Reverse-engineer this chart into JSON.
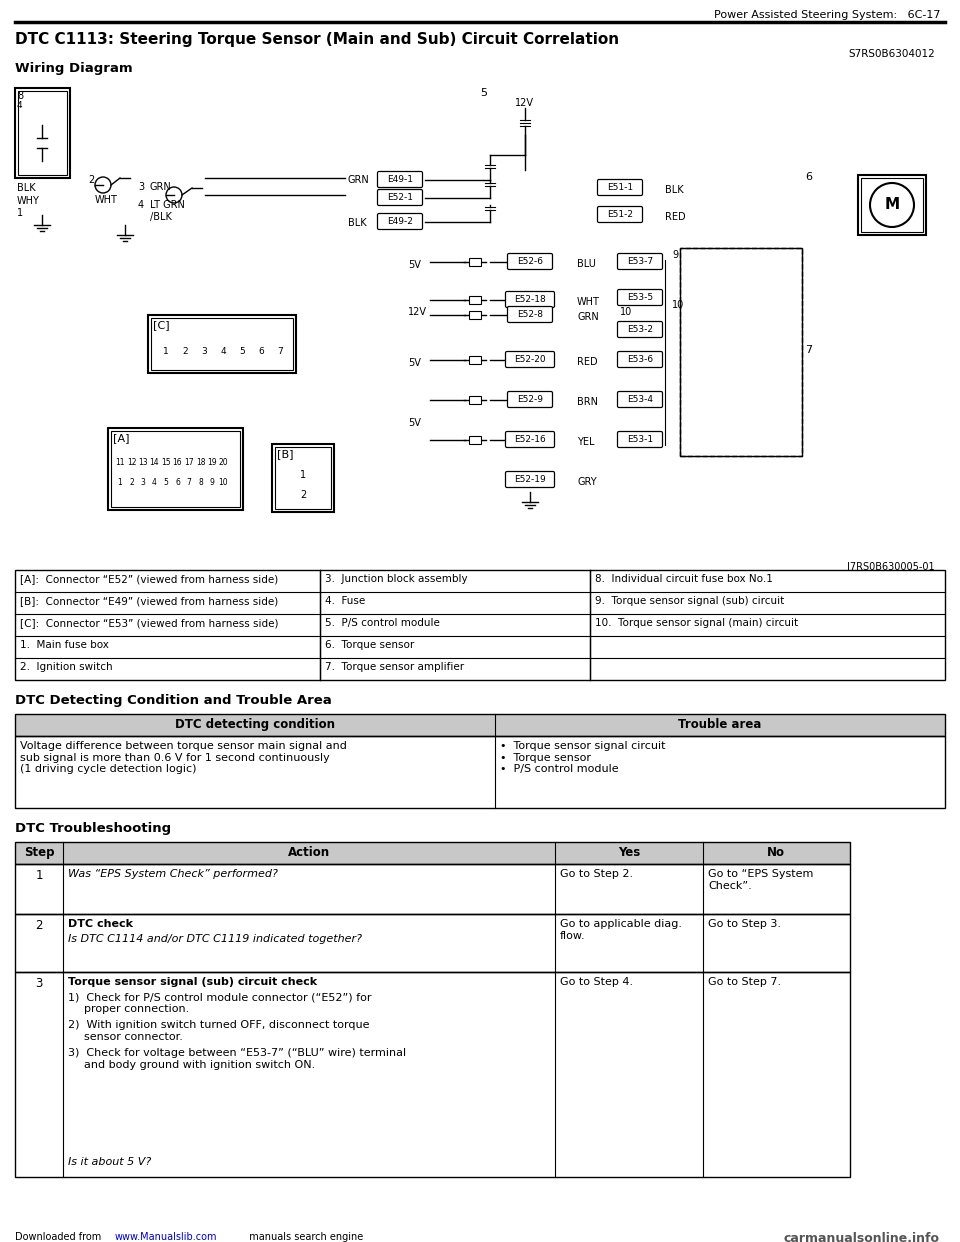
{
  "page_header_right": "Power Assisted Steering System:   6C-17",
  "title": "DTC C1113: Steering Torque Sensor (Main and Sub) Circuit Correlation",
  "subtitle_code": "S7RS0B6304012",
  "wiring_diagram_label": "Wiring Diagram",
  "diagram_ref": "I7RS0B630005-01",
  "legend_table": [
    [
      "[A]:  Connector “E52” (viewed from harness side)",
      "3.  Junction block assembly",
      "8.  Individual circuit fuse box No.1"
    ],
    [
      "[B]:  Connector “E49” (viewed from harness side)",
      "4.  Fuse",
      "9.  Torque sensor signal (sub) circuit"
    ],
    [
      "[C]:  Connector “E53” (viewed from harness side)",
      "5.  P/S control module",
      "10.  Torque sensor signal (main) circuit"
    ],
    [
      "1.  Main fuse box",
      "6.  Torque sensor",
      ""
    ],
    [
      "2.  Ignition switch",
      "7.  Torque sensor amplifier",
      ""
    ]
  ],
  "dtc_condition_title": "DTC Detecting Condition and Trouble Area",
  "dtc_condition_header": [
    "DTC detecting condition",
    "Trouble area"
  ],
  "dtc_condition_row_left": "Voltage difference between torque sensor main signal and\nsub signal is more than 0.6 V for 1 second continuously\n(1 driving cycle detection logic)",
  "dtc_condition_row_right": "•  Torque sensor signal circuit\n•  Torque sensor\n•  P/S control module",
  "troubleshooting_title": "DTC Troubleshooting",
  "troubleshooting_headers": [
    "Step",
    "Action",
    "Yes",
    "No"
  ],
  "ts_row1_action_italic": "Was “EPS System Check” performed?",
  "ts_row1_yes": "Go to Step 2.",
  "ts_row1_no": "Go to “EPS System\nCheck”.",
  "ts_row2_bold": "DTC check",
  "ts_row2_italic": "Is DTC C1114 and/or DTC C1119 indicated together?",
  "ts_row2_yes": "Go to applicable diag.\nflow.",
  "ts_row2_no": "Go to Step 3.",
  "ts_row3_bold": "Torque sensor signal (sub) circuit check",
  "ts_row3_item1": "Check for P/S control module connector (“E52”) for\nproper connection.",
  "ts_row3_item2": "With ignition switch turned OFF, disconnect torque\nsensor connector.",
  "ts_row3_item3": "Check for voltage between “E53-7” (“BLU” wire) terminal\nand body ground with ignition switch ON.",
  "ts_row3_italic": "Is it about 5 V?",
  "ts_row3_yes": "Go to Step 4.",
  "ts_row3_no": "Go to Step 7.",
  "footer_right": "carmanualsonline.info",
  "bg_color": "#ffffff",
  "page_width": 9.6,
  "page_height": 12.42,
  "dpi": 100
}
